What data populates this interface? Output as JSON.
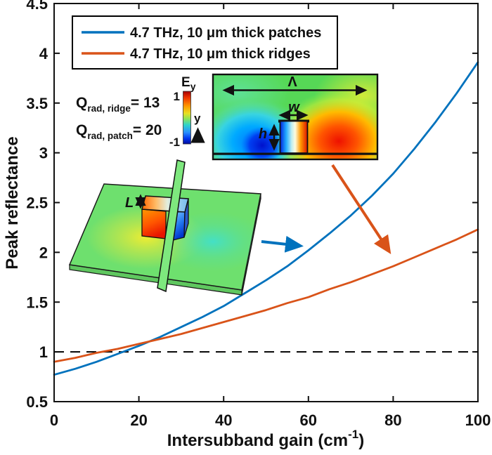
{
  "figure": {
    "background": "#ffffff",
    "accent_blue": "#0072BD",
    "accent_orange": "#D95319"
  },
  "chart_data": {
    "type": "line",
    "title": "",
    "xlabel": "Intersubband gain (cm⁻¹)",
    "ylabel": "Peak reflectance",
    "xlabel_parts": {
      "pre": "Intersubband gain (cm",
      "sup": "-1",
      "post": ")"
    },
    "xlim": [
      0,
      100
    ],
    "ylim": [
      0.5,
      4.5
    ],
    "x_ticks": [
      0,
      20,
      40,
      60,
      80,
      100
    ],
    "y_ticks": [
      0.5,
      1,
      1.5,
      2,
      2.5,
      3,
      3.5,
      4,
      4.5
    ],
    "grid": false,
    "legend_position": "top-left-inside",
    "x": [
      0,
      5,
      10,
      15,
      20,
      25,
      30,
      35,
      40,
      45,
      50,
      55,
      60,
      65,
      70,
      75,
      80,
      85,
      90,
      95,
      100
    ],
    "series": [
      {
        "name": "4.7 THz, 10 μm thick patches",
        "color": "#0072BD",
        "values": [
          0.77,
          0.83,
          0.9,
          0.98,
          1.06,
          1.15,
          1.25,
          1.35,
          1.46,
          1.59,
          1.72,
          1.86,
          2.02,
          2.19,
          2.37,
          2.57,
          2.79,
          3.04,
          3.31,
          3.6,
          3.91
        ]
      },
      {
        "name": "4.7 THz, 10 μm thick ridges",
        "color": "#D95319",
        "values": [
          0.9,
          0.94,
          0.99,
          1.03,
          1.08,
          1.13,
          1.18,
          1.24,
          1.3,
          1.36,
          1.42,
          1.49,
          1.55,
          1.63,
          1.7,
          1.78,
          1.86,
          1.95,
          2.04,
          2.13,
          2.23
        ]
      }
    ],
    "reference_line": {
      "y": 1.0,
      "style": "dashed",
      "color": "#000000"
    }
  },
  "legend": {
    "items": [
      {
        "label": "4.7 THz, 10 μm thick patches",
        "color": "#0072BD"
      },
      {
        "label": "4.7 THz, 10 μm thick ridges",
        "color": "#D95319"
      }
    ]
  },
  "annotations": {
    "q_ridge": {
      "symbol": "Q",
      "subscript": "rad, ridge",
      "value": "= 13"
    },
    "q_patch": {
      "symbol": "Q",
      "subscript": "rad, patch",
      "value": "= 20"
    }
  },
  "colorbar": {
    "label_base": "E",
    "label_sub": "y",
    "max": "1",
    "min": "-1",
    "axis_label": "y"
  },
  "inset_cross_section": {
    "period_label": "Λ",
    "width_label": "w",
    "height_label": "h"
  },
  "inset_3d": {
    "length_label": "L"
  }
}
